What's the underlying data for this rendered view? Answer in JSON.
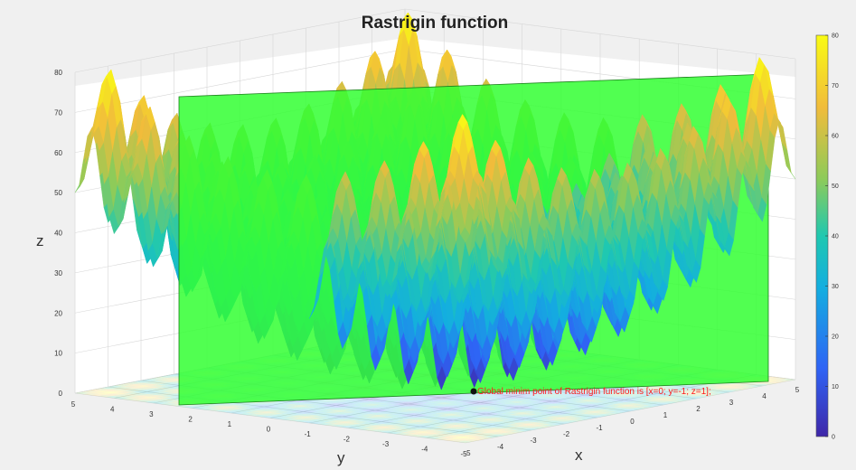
{
  "chart_data": {
    "type": "surface3d",
    "title": "Rastrigin function",
    "xlabel": "x",
    "ylabel": "y",
    "zlabel": "z",
    "xlim": [
      -5,
      5
    ],
    "ylim": [
      -5,
      5
    ],
    "zlim": [
      0,
      80
    ],
    "x_ticks": [
      "-5",
      "-4",
      "-3",
      "-2",
      "-1",
      "0",
      "1",
      "2",
      "3",
      "4",
      "5"
    ],
    "y_ticks": [
      "-5",
      "-4",
      "-3",
      "-2",
      "-1",
      "0",
      "1",
      "2",
      "3",
      "4",
      "5"
    ],
    "z_ticks": [
      "0",
      "10",
      "20",
      "30",
      "40",
      "50",
      "60",
      "70",
      "80"
    ],
    "colorbar": {
      "ticks": [
        "0",
        "10",
        "20",
        "30",
        "40",
        "50",
        "60",
        "70",
        "80"
      ],
      "range": [
        0,
        80
      ],
      "colormap": [
        "#3e26a8",
        "#2f64f5",
        "#13aee0",
        "#1fc8b0",
        "#8ccb5a",
        "#f1bc3b",
        "#f9fb14"
      ]
    },
    "plane": {
      "axis": "y",
      "value": -1,
      "color": "#33ff33",
      "opacity": 0.85
    },
    "surface": {
      "function": "z = 20 + x^2 + y^2 - 10*(cos(2*pi*x) + cos(2*pi*y))"
    },
    "marker": {
      "x": 0,
      "y": -1,
      "z": 1
    },
    "annotation": "Global minim point of Rastrigin function is [x=0; y=-1; z=1];",
    "grid": true
  }
}
